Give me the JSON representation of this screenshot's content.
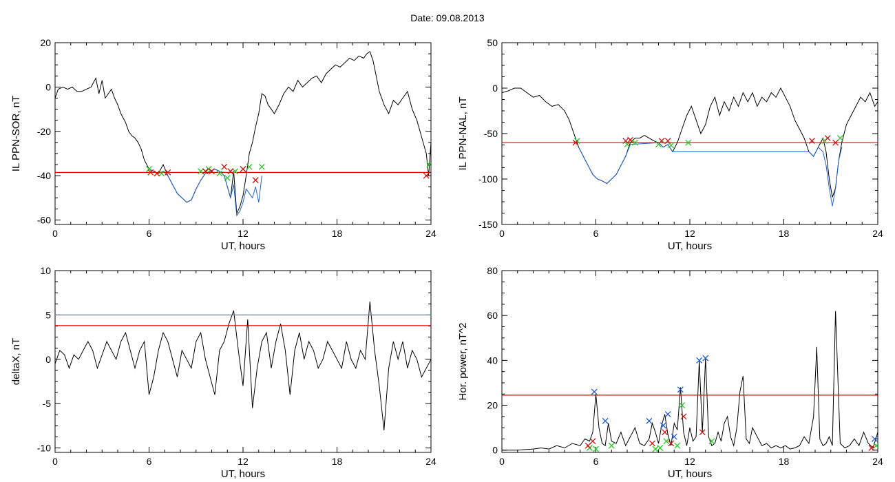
{
  "title": "Date:  09.08.2013",
  "chart_data": [
    {
      "type": "line",
      "xlabel": "UT, hours",
      "ylabel": "IL PPN-SOR, nT",
      "xlim": [
        0,
        24
      ],
      "ylim": [
        -62,
        20
      ],
      "xticks": [
        "0",
        "6",
        "12",
        "18",
        "24"
      ],
      "yticks": [
        "-60",
        "-40",
        "-20",
        "0",
        "20"
      ],
      "threshold_lines": [
        {
          "y": -38.5,
          "color": "#e00000"
        }
      ],
      "series": [
        {
          "color": "#000000",
          "x": [
            0,
            0.2,
            0.5,
            0.8,
            1.1,
            1.4,
            1.7,
            2.0,
            2.3,
            2.6,
            2.8,
            3.0,
            3.2,
            3.4,
            3.6,
            3.8,
            4.0,
            4.2,
            4.5,
            4.7,
            4.9,
            5.1,
            5.3,
            5.5,
            5.7,
            6.0,
            6.3,
            6.6,
            6.9,
            7.2,
            7.5,
            7.8,
            8.1,
            8.4,
            8.7,
            9.0,
            9.3,
            9.6,
            9.9,
            10.2,
            10.5,
            10.8,
            11.0,
            11.2,
            11.4,
            11.6,
            11.8,
            12.0,
            12.2,
            12.4,
            12.6,
            12.8,
            13.0,
            13.2,
            13.4,
            13.6,
            13.8,
            14.0,
            14.3,
            14.6,
            14.9,
            15.2,
            15.5,
            15.8,
            16.1,
            16.4,
            16.7,
            17.0,
            17.3,
            17.6,
            17.9,
            18.2,
            18.5,
            18.8,
            19.1,
            19.4,
            19.7,
            19.9,
            20.1,
            20.3,
            20.5,
            20.7,
            21.0,
            21.3,
            21.6,
            21.9,
            22.2,
            22.5,
            22.8,
            23.1,
            23.3,
            23.5,
            23.7,
            23.85,
            24
          ],
          "y": [
            -5,
            -1,
            0,
            -1,
            0,
            -2,
            -2,
            -1,
            0,
            4,
            -3,
            3,
            -5,
            -3,
            -1,
            -5,
            -8,
            -12,
            -16,
            -20,
            -22,
            -23,
            -25,
            -28,
            -33,
            -37,
            -38,
            -39,
            -35,
            -40,
            -44,
            -48,
            -50,
            -52,
            -51,
            -46,
            -42,
            -39,
            -38,
            -37,
            -38,
            -40,
            -45,
            -50,
            -38,
            -57,
            -54,
            -49,
            -40,
            -30,
            -25,
            -18,
            -12,
            -3,
            -4,
            -8,
            -10,
            -12,
            -8,
            -3,
            0,
            -2,
            3,
            0,
            2,
            4,
            5,
            2,
            6,
            8,
            10,
            9,
            11,
            13,
            12,
            14,
            13,
            15,
            16,
            12,
            5,
            -2,
            -8,
            -12,
            -6,
            -8,
            -5,
            -2,
            -10,
            -15,
            -20,
            -25,
            -30,
            -40,
            -25
          ]
        },
        {
          "color": "#1f5fd0",
          "x": [
            6.0,
            6.3,
            6.6,
            6.9,
            7.2,
            7.5,
            7.8,
            8.1,
            8.4,
            8.7,
            9.0,
            9.3,
            9.6,
            9.9,
            10.2,
            10.5,
            10.8,
            11.0,
            11.2,
            11.4,
            11.6,
            11.8,
            12.0,
            12.2,
            12.4,
            12.6,
            12.8,
            13.0,
            13.2
          ],
          "y": [
            -37,
            -38,
            -39,
            -38,
            -40,
            -44,
            -48,
            -50,
            -52,
            -51,
            -46,
            -42,
            -39,
            -38,
            -37,
            -38,
            -40,
            -45,
            -50,
            -44,
            -58,
            -56,
            -52,
            -46,
            -48,
            -50,
            -45,
            -52,
            -40
          ]
        }
      ],
      "markers_red": [
        [
          6.1,
          -38.5
        ],
        [
          6.5,
          -39
        ],
        [
          7.2,
          -38.5
        ],
        [
          9.6,
          -38
        ],
        [
          10.0,
          -38
        ],
        [
          10.8,
          -36
        ],
        [
          11.2,
          -38
        ],
        [
          12.0,
          -37
        ],
        [
          12.8,
          -42
        ],
        [
          23.7,
          -40
        ]
      ],
      "markers_green": [
        [
          6.0,
          -37
        ],
        [
          6.8,
          -39
        ],
        [
          9.3,
          -38
        ],
        [
          9.8,
          -37
        ],
        [
          10.5,
          -39
        ],
        [
          11.0,
          -41
        ],
        [
          11.5,
          -38
        ],
        [
          12.4,
          -36
        ],
        [
          13.2,
          -36
        ],
        [
          23.9,
          -35
        ]
      ]
    },
    {
      "type": "line",
      "xlabel": "UT, hours",
      "ylabel": "IL PPN-NAL, nT",
      "xlim": [
        0,
        24
      ],
      "ylim": [
        -150,
        50
      ],
      "xticks": [
        "0",
        "6",
        "12",
        "18",
        "24"
      ],
      "yticks": [
        "-150",
        "-100",
        "-50",
        "0",
        "50"
      ],
      "threshold_lines": [
        {
          "y": -60,
          "color": "#e00000"
        }
      ],
      "series": [
        {
          "color": "#000000",
          "x": [
            0,
            0.4,
            0.8,
            1.2,
            1.6,
            2.0,
            2.4,
            2.8,
            3.2,
            3.6,
            4.0,
            4.3,
            4.6,
            4.9,
            5.2,
            5.5,
            5.8,
            6.1,
            6.4,
            6.7,
            7.0,
            7.3,
            7.6,
            7.9,
            8.2,
            8.5,
            8.8,
            9.1,
            9.4,
            9.7,
            10.0,
            10.3,
            10.6,
            10.9,
            11.2,
            11.5,
            11.8,
            12.1,
            12.4,
            12.7,
            13.0,
            13.3,
            13.6,
            13.9,
            14.2,
            14.5,
            14.8,
            15.1,
            15.4,
            15.7,
            16.0,
            16.3,
            16.6,
            16.9,
            17.2,
            17.5,
            17.8,
            18.1,
            18.4,
            18.7,
            19.0,
            19.3,
            19.6,
            19.9,
            20.2,
            20.5,
            20.7,
            20.9,
            21.1,
            21.3,
            21.5,
            21.7,
            22.0,
            22.3,
            22.6,
            22.9,
            23.2,
            23.5,
            23.8,
            24
          ],
          "y": [
            -5,
            -3,
            0,
            0,
            -5,
            -10,
            -8,
            -15,
            -20,
            -18,
            -25,
            -35,
            -50,
            -65,
            -75,
            -85,
            -95,
            -100,
            -102,
            -105,
            -100,
            -95,
            -85,
            -75,
            -60,
            -55,
            -55,
            -52,
            -55,
            -58,
            -60,
            -65,
            -62,
            -70,
            -60,
            -45,
            -30,
            -20,
            -35,
            -50,
            -40,
            -20,
            -10,
            -30,
            -15,
            -25,
            -10,
            -20,
            -5,
            -15,
            -5,
            -20,
            -10,
            -15,
            -5,
            -10,
            0,
            -10,
            -20,
            -35,
            -45,
            -55,
            -70,
            -75,
            -65,
            -55,
            -70,
            -100,
            -120,
            -110,
            -80,
            -60,
            -40,
            -30,
            -20,
            -10,
            -15,
            -5,
            -20,
            -15
          ]
        },
        {
          "color": "#1f5fd0",
          "x": [
            4.9,
            5.2,
            5.5,
            5.8,
            6.1,
            6.4,
            6.7,
            7.0,
            7.3,
            7.6,
            7.9,
            8.2,
            10.0,
            10.3,
            10.6,
            10.9,
            19.6,
            19.9,
            20.2,
            20.5,
            20.7,
            20.9,
            21.1,
            21.3,
            21.5,
            21.7
          ],
          "y": [
            -65,
            -75,
            -85,
            -95,
            -100,
            -102,
            -105,
            -100,
            -95,
            -85,
            -75,
            -62,
            -60,
            -65,
            -62,
            -70,
            -70,
            -75,
            -65,
            -70,
            -85,
            -110,
            -130,
            -110,
            -80,
            -65
          ]
        }
      ],
      "markers_red": [
        [
          4.7,
          -60
        ],
        [
          7.9,
          -58
        ],
        [
          8.2,
          -57
        ],
        [
          10.2,
          -58
        ],
        [
          10.6,
          -58
        ],
        [
          19.8,
          -58
        ],
        [
          20.8,
          -55
        ],
        [
          21.3,
          -60
        ]
      ],
      "markers_green": [
        [
          4.8,
          -58
        ],
        [
          8.0,
          -62
        ],
        [
          8.5,
          -60
        ],
        [
          10.0,
          -62
        ],
        [
          10.8,
          -63
        ],
        [
          11.9,
          -60
        ],
        [
          20.6,
          -58
        ],
        [
          21.6,
          -55
        ]
      ]
    },
    {
      "type": "line",
      "xlabel": "UT, hours",
      "ylabel": "deltaX, nT",
      "xlim": [
        0,
        24
      ],
      "ylim": [
        -10.5,
        10
      ],
      "xticks": [
        "0",
        "6",
        "12",
        "18",
        "24"
      ],
      "yticks": [
        "-10",
        "-5",
        "0",
        "5",
        "10"
      ],
      "threshold_lines": [
        {
          "y": 5,
          "color": "#2a9d8f"
        },
        {
          "y": 3.8,
          "color": "#e00000"
        }
      ],
      "series": [
        {
          "color": "#000000",
          "x": [
            0,
            0.3,
            0.6,
            0.9,
            1.2,
            1.5,
            1.8,
            2.1,
            2.4,
            2.7,
            3.0,
            3.3,
            3.6,
            3.9,
            4.2,
            4.5,
            4.8,
            5.1,
            5.4,
            5.7,
            6.0,
            6.3,
            6.6,
            6.9,
            7.2,
            7.5,
            7.8,
            8.1,
            8.4,
            8.7,
            9.0,
            9.3,
            9.6,
            9.9,
            10.2,
            10.5,
            10.8,
            11.1,
            11.4,
            11.7,
            12.0,
            12.3,
            12.6,
            12.9,
            13.2,
            13.5,
            13.8,
            14.1,
            14.4,
            14.7,
            15.0,
            15.3,
            15.6,
            15.9,
            16.2,
            16.5,
            16.8,
            17.1,
            17.4,
            17.7,
            18.0,
            18.3,
            18.6,
            18.9,
            19.2,
            19.5,
            19.8,
            20.1,
            20.4,
            20.7,
            21.0,
            21.3,
            21.6,
            21.9,
            22.2,
            22.5,
            22.8,
            23.1,
            23.4,
            23.7,
            24
          ],
          "y": [
            -0.5,
            1,
            0.5,
            -1,
            0.5,
            0,
            1,
            2,
            1,
            -1,
            0.5,
            2,
            1,
            0,
            2,
            3,
            1,
            -1,
            1,
            2,
            -4,
            -2,
            1,
            3,
            2,
            0,
            -2,
            1,
            0,
            -1,
            2,
            3,
            0,
            -2,
            -4,
            1,
            2,
            4,
            5.5,
            1,
            -3,
            4.5,
            -5.5,
            -1,
            2,
            3,
            -1,
            2,
            4,
            1,
            -4,
            1,
            3,
            0,
            2,
            1,
            -1,
            0,
            2,
            1,
            0,
            -1,
            2,
            0,
            -1,
            1,
            0,
            6.5,
            1,
            -3,
            -8,
            -1,
            2,
            0,
            2,
            -1,
            1,
            0,
            -2,
            -1,
            0
          ]
        }
      ]
    },
    {
      "type": "line",
      "xlabel": "UT, hours",
      "ylabel": "Hor. power, nT^2",
      "xlim": [
        0,
        24
      ],
      "ylim": [
        -1,
        80
      ],
      "xticks": [
        "0",
        "6",
        "12",
        "18",
        "24"
      ],
      "yticks": [
        "0",
        "20",
        "40",
        "60",
        "80"
      ],
      "threshold_lines": [
        {
          "y": 24.5,
          "color": "#e00000"
        }
      ],
      "series": [
        {
          "color": "#000000",
          "x": [
            0,
            1,
            2,
            2.5,
            3,
            3.5,
            4,
            4.5,
            5,
            5.3,
            5.6,
            5.8,
            6.0,
            6.2,
            6.4,
            6.6,
            6.8,
            7.0,
            7.3,
            7.6,
            7.9,
            8.2,
            8.5,
            8.8,
            9.1,
            9.4,
            9.6,
            9.8,
            10.0,
            10.2,
            10.4,
            10.6,
            10.8,
            11.0,
            11.2,
            11.4,
            11.6,
            11.8,
            12.0,
            12.2,
            12.4,
            12.6,
            12.8,
            13.0,
            13.2,
            13.4,
            13.6,
            13.8,
            14.0,
            14.2,
            14.4,
            14.6,
            14.8,
            15.0,
            15.2,
            15.4,
            15.6,
            15.8,
            16.0,
            16.3,
            16.6,
            16.9,
            17.2,
            17.5,
            17.8,
            18.1,
            18.4,
            18.7,
            19.0,
            19.3,
            19.6,
            19.9,
            20.1,
            20.3,
            20.5,
            20.7,
            20.9,
            21.1,
            21.3,
            21.6,
            21.9,
            22.2,
            22.5,
            22.8,
            23.1,
            23.4,
            23.7,
            24
          ],
          "y": [
            0,
            0,
            0.5,
            1,
            0.5,
            2,
            1,
            3,
            2,
            5,
            4,
            8,
            25,
            10,
            3,
            2,
            12,
            4,
            3,
            8,
            2,
            6,
            10,
            3,
            2,
            5,
            12,
            8,
            3,
            11,
            16,
            7,
            2,
            12,
            9,
            28,
            8,
            2,
            10,
            4,
            6,
            40,
            8,
            41,
            6,
            2,
            3,
            8,
            4,
            12,
            15,
            6,
            2,
            10,
            26,
            33,
            5,
            3,
            10,
            6,
            2,
            3,
            1,
            2,
            1,
            2,
            0.5,
            1,
            2,
            6,
            3,
            15,
            46,
            5,
            2,
            3,
            6,
            2,
            62,
            3,
            1,
            2,
            5,
            2,
            8,
            3,
            1,
            8
          ]
        }
      ],
      "markers_blue": [
        [
          5.9,
          26
        ],
        [
          6.6,
          13
        ],
        [
          9.4,
          13
        ],
        [
          10.3,
          11
        ],
        [
          10.6,
          16
        ],
        [
          11.0,
          6
        ],
        [
          11.4,
          27
        ],
        [
          12.6,
          40
        ],
        [
          13.0,
          41
        ],
        [
          23.8,
          5
        ]
      ],
      "markers_red": [
        [
          5.5,
          2
        ],
        [
          5.8,
          4
        ],
        [
          9.6,
          3
        ],
        [
          10.4,
          8
        ],
        [
          10.8,
          3
        ],
        [
          11.6,
          15
        ],
        [
          12.8,
          8
        ],
        [
          23.6,
          1
        ]
      ],
      "markers_green": [
        [
          5.6,
          1
        ],
        [
          6.0,
          0.5
        ],
        [
          7.0,
          2
        ],
        [
          9.8,
          0.5
        ],
        [
          10.1,
          1
        ],
        [
          10.5,
          4
        ],
        [
          11.2,
          2
        ],
        [
          11.5,
          20
        ],
        [
          13.4,
          4
        ],
        [
          23.9,
          2
        ]
      ]
    }
  ]
}
